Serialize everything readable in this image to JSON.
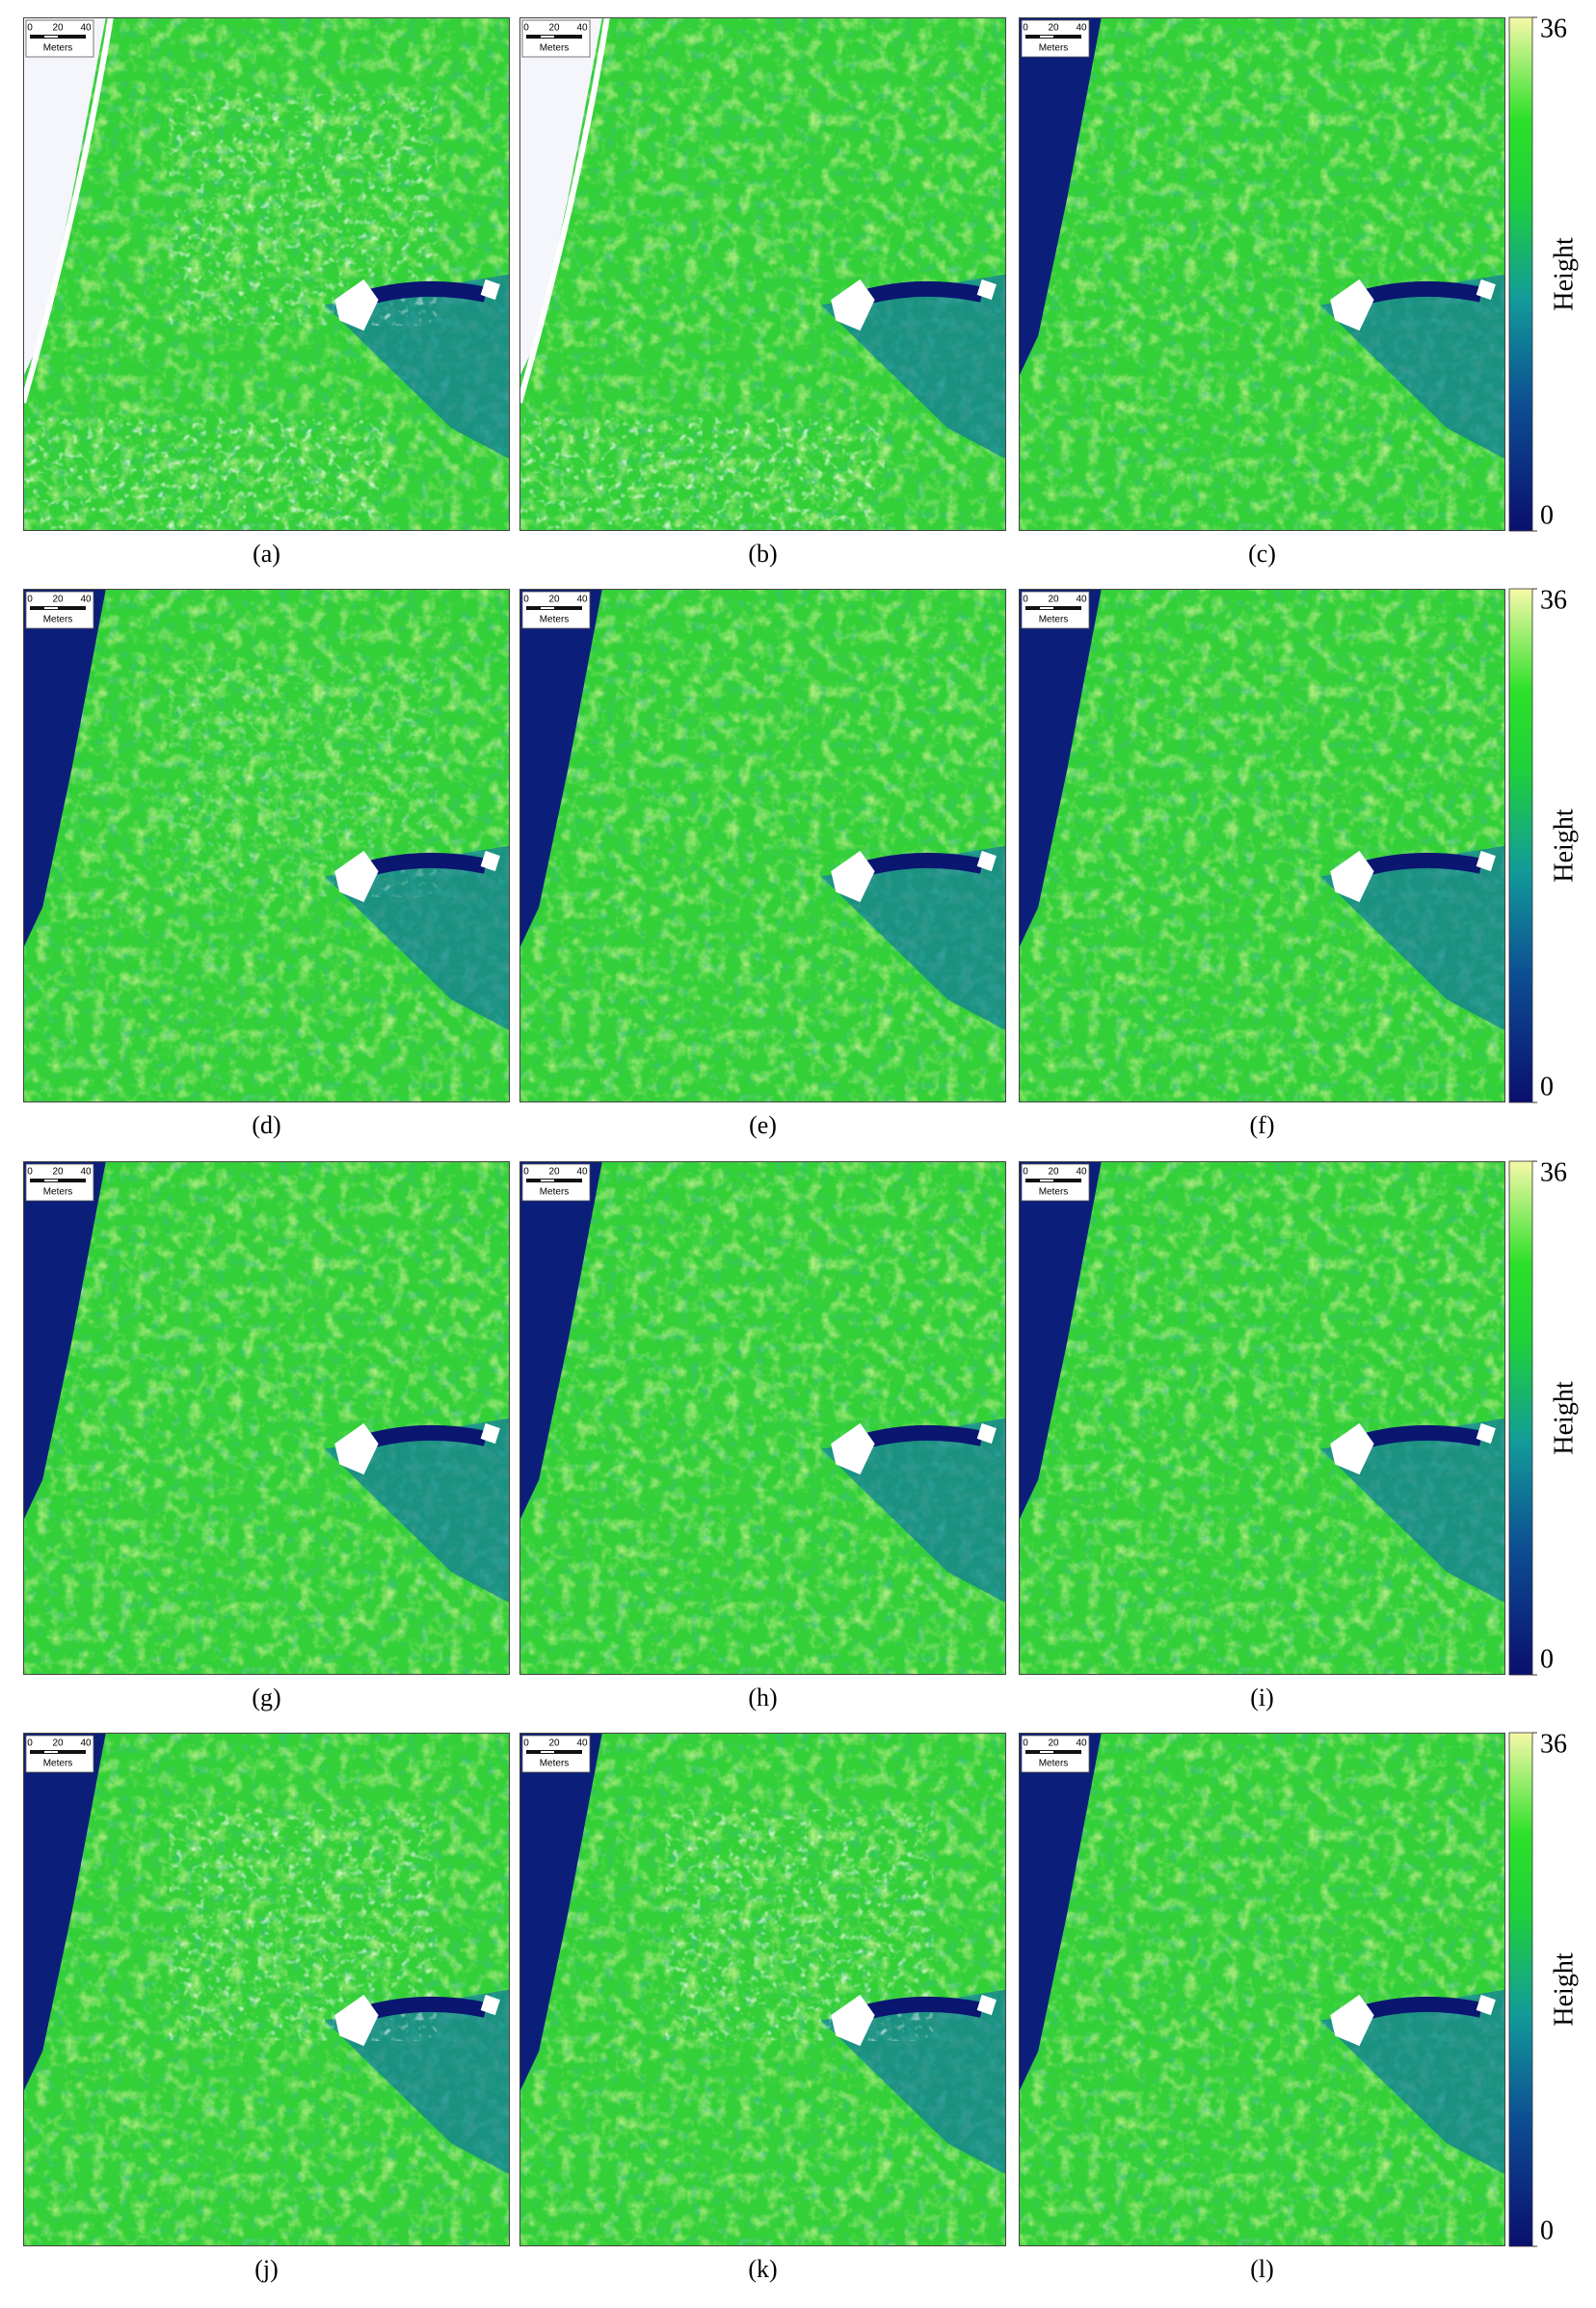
{
  "panels": [
    {
      "label": "(a)",
      "scale_bar": [
        "0",
        "20",
        "40"
      ],
      "scale_unit": "Meters"
    },
    {
      "label": "(b)",
      "scale_bar": [
        "0",
        "20",
        "40"
      ],
      "scale_unit": "Meters"
    },
    {
      "label": "(c)",
      "scale_bar": [
        "0",
        "20",
        "40"
      ],
      "scale_unit": "Meters"
    },
    {
      "label": "(d)",
      "scale_bar": [
        "0",
        "20",
        "40"
      ],
      "scale_unit": "Meters"
    },
    {
      "label": "(e)",
      "scale_bar": [
        "0",
        "20",
        "40"
      ],
      "scale_unit": "Meters"
    },
    {
      "label": "(f)",
      "scale_bar": [
        "0",
        "20",
        "40"
      ],
      "scale_unit": "Meters"
    },
    {
      "label": "(g)",
      "scale_bar": [
        "0",
        "20",
        "40"
      ],
      "scale_unit": "Meters"
    },
    {
      "label": "(h)",
      "scale_bar": [
        "0",
        "20",
        "40"
      ],
      "scale_unit": "Meters"
    },
    {
      "label": "(i)",
      "scale_bar": [
        "0",
        "20",
        "40"
      ],
      "scale_unit": "Meters"
    },
    {
      "label": "(j)",
      "scale_bar": [
        "0",
        "20",
        "40"
      ],
      "scale_unit": "Meters"
    },
    {
      "label": "(k)",
      "scale_bar": [
        "0",
        "20",
        "40"
      ],
      "scale_unit": "Meters"
    },
    {
      "label": "(l)",
      "scale_bar": [
        "0",
        "20",
        "40"
      ],
      "scale_unit": "Meters"
    }
  ],
  "colorbars": [
    {
      "label": "Height",
      "clim": [
        0,
        36
      ],
      "ticks": [
        0,
        36
      ]
    },
    {
      "label": "Height",
      "clim": [
        0,
        36
      ],
      "ticks": [
        0,
        36
      ]
    },
    {
      "label": "Height",
      "clim": [
        0,
        36
      ],
      "ticks": [
        0,
        36
      ]
    },
    {
      "label": "Height",
      "clim": [
        0,
        36
      ],
      "ticks": [
        0,
        36
      ]
    }
  ]
}
